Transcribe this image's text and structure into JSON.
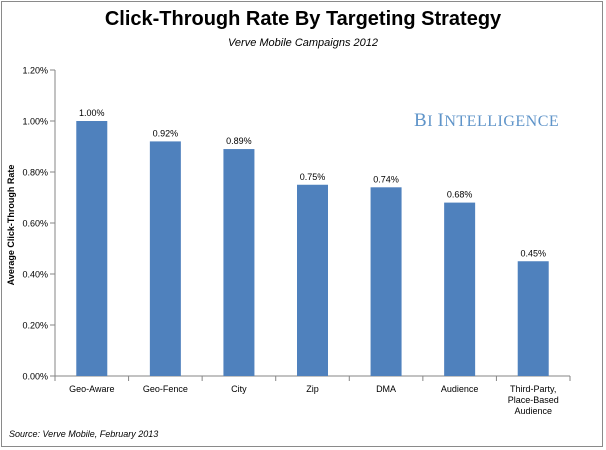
{
  "chart_data": {
    "type": "bar",
    "title": "Click-Through Rate By Targeting Strategy",
    "subtitle": "Verve Mobile Campaigns 2012",
    "ylabel": "Average Click-Through Rate",
    "xlabel": "",
    "categories": [
      "Geo-Aware",
      "Geo-Fence",
      "City",
      "Zip",
      "DMA",
      "Audience",
      "Third-Party, Place-Based Audience"
    ],
    "category_lines": [
      [
        "Geo-Aware"
      ],
      [
        "Geo-Fence"
      ],
      [
        "City"
      ],
      [
        "Zip"
      ],
      [
        "DMA"
      ],
      [
        "Audience"
      ],
      [
        "Third-Party,",
        "Place-Based",
        "Audience"
      ]
    ],
    "values": [
      1.0,
      0.92,
      0.89,
      0.75,
      0.74,
      0.68,
      0.45
    ],
    "value_labels": [
      "1.00%",
      "0.92%",
      "0.89%",
      "0.75%",
      "0.74%",
      "0.68%",
      "0.45%"
    ],
    "ylim": [
      0,
      1.2
    ],
    "yticks": [
      "0.00%",
      "0.20%",
      "0.40%",
      "0.60%",
      "0.80%",
      "1.00%",
      "1.20%"
    ],
    "grid": false,
    "bar_color": "#4f81bd",
    "watermark": "BI Intelligence",
    "source": "Source: Verve Mobile, February 2013"
  }
}
